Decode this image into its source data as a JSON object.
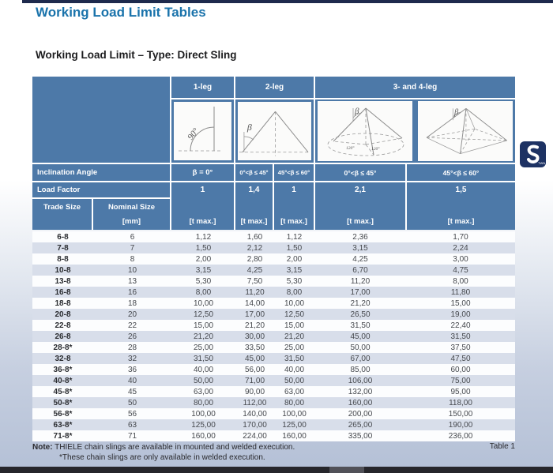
{
  "page": {
    "title": "Working Load Limit Tables",
    "subtitle": "Working Load Limit – Type: Direct Sling",
    "table_caption": "Table 1",
    "note_label": "Note:",
    "note_line1": "THIELE chain slings are available in mounted and welded execution.",
    "note_line2": "*These chain slings are only available in welded execution.",
    "logo_text": "TWN"
  },
  "colors": {
    "header_blue": "#4d79a8",
    "title_blue": "#1a73ab",
    "top_rule_navy": "#1e2a4d",
    "alt_row": "#d8deea",
    "logo_navy": "#1d3263"
  },
  "table": {
    "leg_headers": {
      "one": "1-leg",
      "two": "2-leg",
      "three_four": "3- and 4-leg"
    },
    "inclination_label": "Inclination Angle",
    "inclination_values": [
      "β = 0°",
      "0°<β ≤ 45°",
      "45°<β ≤ 60°",
      "0°<β ≤ 45°",
      "45°<β ≤ 60°"
    ],
    "load_factor_label": "Load Factor",
    "load_factors": [
      "1",
      "1,4",
      "1",
      "2,1",
      "1,5"
    ],
    "trade_size_label": "Trade Size",
    "nominal_size_label": "Nominal Size",
    "nominal_size_unit": "[mm]",
    "unit_label": "[t max.]",
    "diagrams": {
      "one_leg_angle": "90°",
      "beta": "β",
      "angle_120": "120°"
    },
    "rows": [
      {
        "trade": "6-8",
        "mm": "6",
        "v": [
          "1,12",
          "1,60",
          "1,12",
          "2,36",
          "1,70"
        ]
      },
      {
        "trade": "7-8",
        "mm": "7",
        "v": [
          "1,50",
          "2,12",
          "1,50",
          "3,15",
          "2,24"
        ]
      },
      {
        "trade": "8-8",
        "mm": "8",
        "v": [
          "2,00",
          "2,80",
          "2,00",
          "4,25",
          "3,00"
        ]
      },
      {
        "trade": "10-8",
        "mm": "10",
        "v": [
          "3,15",
          "4,25",
          "3,15",
          "6,70",
          "4,75"
        ]
      },
      {
        "trade": "13-8",
        "mm": "13",
        "v": [
          "5,30",
          "7,50",
          "5,30",
          "11,20",
          "8,00"
        ]
      },
      {
        "trade": "16-8",
        "mm": "16",
        "v": [
          "8,00",
          "11,20",
          "8,00",
          "17,00",
          "11,80"
        ]
      },
      {
        "trade": "18-8",
        "mm": "18",
        "v": [
          "10,00",
          "14,00",
          "10,00",
          "21,20",
          "15,00"
        ]
      },
      {
        "trade": "20-8",
        "mm": "20",
        "v": [
          "12,50",
          "17,00",
          "12,50",
          "26,50",
          "19,00"
        ]
      },
      {
        "trade": "22-8",
        "mm": "22",
        "v": [
          "15,00",
          "21,20",
          "15,00",
          "31,50",
          "22,40"
        ]
      },
      {
        "trade": "26-8",
        "mm": "26",
        "v": [
          "21,20",
          "30,00",
          "21,20",
          "45,00",
          "31,50"
        ]
      },
      {
        "trade": "28-8*",
        "mm": "28",
        "v": [
          "25,00",
          "33,50",
          "25,00",
          "50,00",
          "37,50"
        ]
      },
      {
        "trade": "32-8",
        "mm": "32",
        "v": [
          "31,50",
          "45,00",
          "31,50",
          "67,00",
          "47,50"
        ]
      },
      {
        "trade": "36-8*",
        "mm": "36",
        "v": [
          "40,00",
          "56,00",
          "40,00",
          "85,00",
          "60,00"
        ]
      },
      {
        "trade": "40-8*",
        "mm": "40",
        "v": [
          "50,00",
          "71,00",
          "50,00",
          "106,00",
          "75,00"
        ]
      },
      {
        "trade": "45-8*",
        "mm": "45",
        "v": [
          "63,00",
          "90,00",
          "63,00",
          "132,00",
          "95,00"
        ]
      },
      {
        "trade": "50-8*",
        "mm": "50",
        "v": [
          "80,00",
          "112,00",
          "80,00",
          "160,00",
          "118,00"
        ]
      },
      {
        "trade": "56-8*",
        "mm": "56",
        "v": [
          "100,00",
          "140,00",
          "100,00",
          "200,00",
          "150,00"
        ]
      },
      {
        "trade": "63-8*",
        "mm": "63",
        "v": [
          "125,00",
          "170,00",
          "125,00",
          "265,00",
          "190,00"
        ]
      },
      {
        "trade": "71-8*",
        "mm": "71",
        "v": [
          "160,00",
          "224,00",
          "160,00",
          "335,00",
          "236,00"
        ]
      }
    ]
  }
}
